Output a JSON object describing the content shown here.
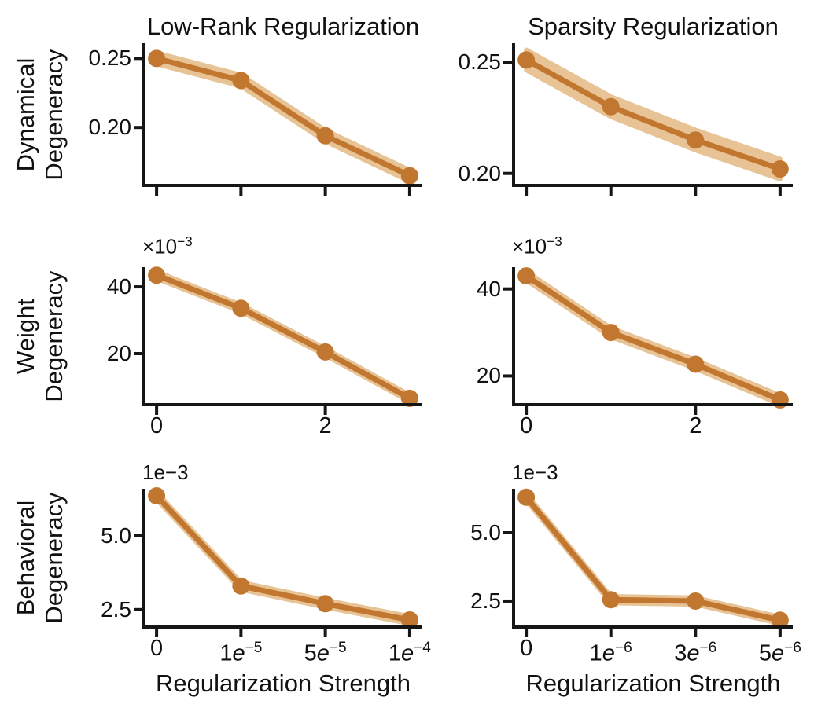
{
  "style": {
    "line_color": "#C1772F",
    "band_color": "#E7C396",
    "axis_color": "#161616",
    "text_color": "#111111",
    "background": "#ffffff"
  },
  "titles": {
    "col0": "Low-Rank Regularization",
    "col1": "Sparsity Regularization"
  },
  "xlabels": {
    "col0": "Regularization Strength",
    "col1": "Regularization Strength"
  },
  "row_labels": {
    "row0": [
      "Dynamical",
      "Degeneracy"
    ],
    "row1": [
      "Weight",
      "Degeneracy"
    ],
    "row2": [
      "Behavioral",
      "Degeneracy"
    ]
  },
  "chart_data": [
    {
      "id": "dynamical-low-rank",
      "type": "line",
      "col_title": "Low-Rank Regularization",
      "ylabel": "Dynamical Degeneracy",
      "x_index": [
        0,
        1,
        2,
        3
      ],
      "values": [
        0.25,
        0.234,
        0.194,
        0.165
      ],
      "band_halfwidth": 0.004,
      "xlim": [
        -0.15,
        3.15
      ],
      "ylim": [
        0.158,
        0.261
      ],
      "yticks": [
        {
          "value": 0.2,
          "label": "0.20"
        },
        {
          "value": 0.25,
          "label": "0.25"
        }
      ],
      "xticks": [
        {
          "value": 0
        },
        {
          "value": 1
        },
        {
          "value": 2
        },
        {
          "value": 3
        }
      ],
      "offset_text": null
    },
    {
      "id": "dynamical-sparsity",
      "type": "line",
      "col_title": "Sparsity Regularization",
      "ylabel": "Dynamical Degeneracy",
      "x_index": [
        0,
        1,
        2,
        3
      ],
      "values": [
        0.251,
        0.23,
        0.215,
        0.202
      ],
      "band_halfwidth": 0.0045,
      "xlim": [
        -0.15,
        3.15
      ],
      "ylim": [
        0.1946,
        0.2585
      ],
      "yticks": [
        {
          "value": 0.2,
          "label": "0.20"
        },
        {
          "value": 0.25,
          "label": "0.25"
        }
      ],
      "xticks": [
        {
          "value": 0
        },
        {
          "value": 1
        },
        {
          "value": 2
        },
        {
          "value": 3
        }
      ],
      "offset_text": null
    },
    {
      "id": "weight-low-rank",
      "type": "line",
      "col_title": "Low-Rank Regularization",
      "ylabel": "Weight Degeneracy",
      "y_unit": "1e-3",
      "x_index": [
        0,
        1,
        2,
        3
      ],
      "values": [
        43.5,
        33.6,
        20.5,
        6.6
      ],
      "band_halfwidth": 1.0,
      "xlim": [
        -0.15,
        3.15
      ],
      "ylim": [
        4.7,
        45.9
      ],
      "yticks": [
        {
          "value": 20,
          "label": "20"
        },
        {
          "value": 40,
          "label": "40"
        }
      ],
      "xticks": [
        {
          "value": 0,
          "text": "0",
          "sup": ""
        },
        {
          "value": 2,
          "text": "2",
          "sup": ""
        }
      ],
      "offset_text": {
        "text": "×10",
        "sup": "−3"
      }
    },
    {
      "id": "weight-sparsity",
      "type": "line",
      "col_title": "Sparsity Regularization",
      "ylabel": "Weight Degeneracy",
      "y_unit": "1e-3",
      "x_index": [
        0,
        1,
        2,
        3
      ],
      "values": [
        43.0,
        30.0,
        22.7,
        14.5
      ],
      "band_halfwidth": 1.0,
      "xlim": [
        -0.15,
        3.15
      ],
      "ylim": [
        13.4,
        45.0
      ],
      "yticks": [
        {
          "value": 20,
          "label": "20"
        },
        {
          "value": 40,
          "label": "40"
        }
      ],
      "xticks": [
        {
          "value": 0,
          "text": "0",
          "sup": ""
        },
        {
          "value": 2,
          "text": "2",
          "sup": ""
        }
      ],
      "offset_text": {
        "text": "×10",
        "sup": "−3"
      }
    },
    {
      "id": "behavioral-low-rank",
      "type": "line",
      "col_title": "Low-Rank Regularization",
      "ylabel": "Behavioral Degeneracy",
      "xlabel": "Regularization Strength",
      "y_unit": "1e-3",
      "x_index": [
        0,
        1,
        2,
        3
      ],
      "values": [
        6.35,
        3.3,
        2.7,
        2.15
      ],
      "band_halfwidth": 0.12,
      "xlim": [
        -0.15,
        3.15
      ],
      "ylim": [
        1.91,
        6.59
      ],
      "yticks": [
        {
          "value": 2.5,
          "label": "2.5"
        },
        {
          "value": 5.0,
          "label": "5.0"
        }
      ],
      "xticks": [
        {
          "value": 0,
          "text": "0",
          "sup": ""
        },
        {
          "value": 1,
          "text": "1e",
          "sup": "−5"
        },
        {
          "value": 2,
          "text": "5e",
          "sup": "−5"
        },
        {
          "value": 3,
          "text": "1e",
          "sup": "−4"
        }
      ],
      "offset_text": {
        "text": "1e−3",
        "sup": ""
      }
    },
    {
      "id": "behavioral-sparsity",
      "type": "line",
      "col_title": "Sparsity Regularization",
      "ylabel": "Behavioral Degeneracy",
      "xlabel": "Regularization Strength",
      "y_unit": "1e-3",
      "x_index": [
        0,
        1,
        2,
        3
      ],
      "values": [
        6.3,
        2.55,
        2.5,
        1.8
      ],
      "band_halfwidth": 0.12,
      "xlim": [
        -0.15,
        3.15
      ],
      "ylim": [
        1.55,
        6.61
      ],
      "yticks": [
        {
          "value": 2.5,
          "label": "2.5"
        },
        {
          "value": 5.0,
          "label": "5.0"
        }
      ],
      "xticks": [
        {
          "value": 0,
          "text": "0",
          "sup": ""
        },
        {
          "value": 1,
          "text": "1e",
          "sup": "−6"
        },
        {
          "value": 2,
          "text": "3e",
          "sup": "−6"
        },
        {
          "value": 3,
          "text": "5e",
          "sup": "−6"
        }
      ],
      "offset_text": {
        "text": "1e−3",
        "sup": ""
      }
    }
  ]
}
